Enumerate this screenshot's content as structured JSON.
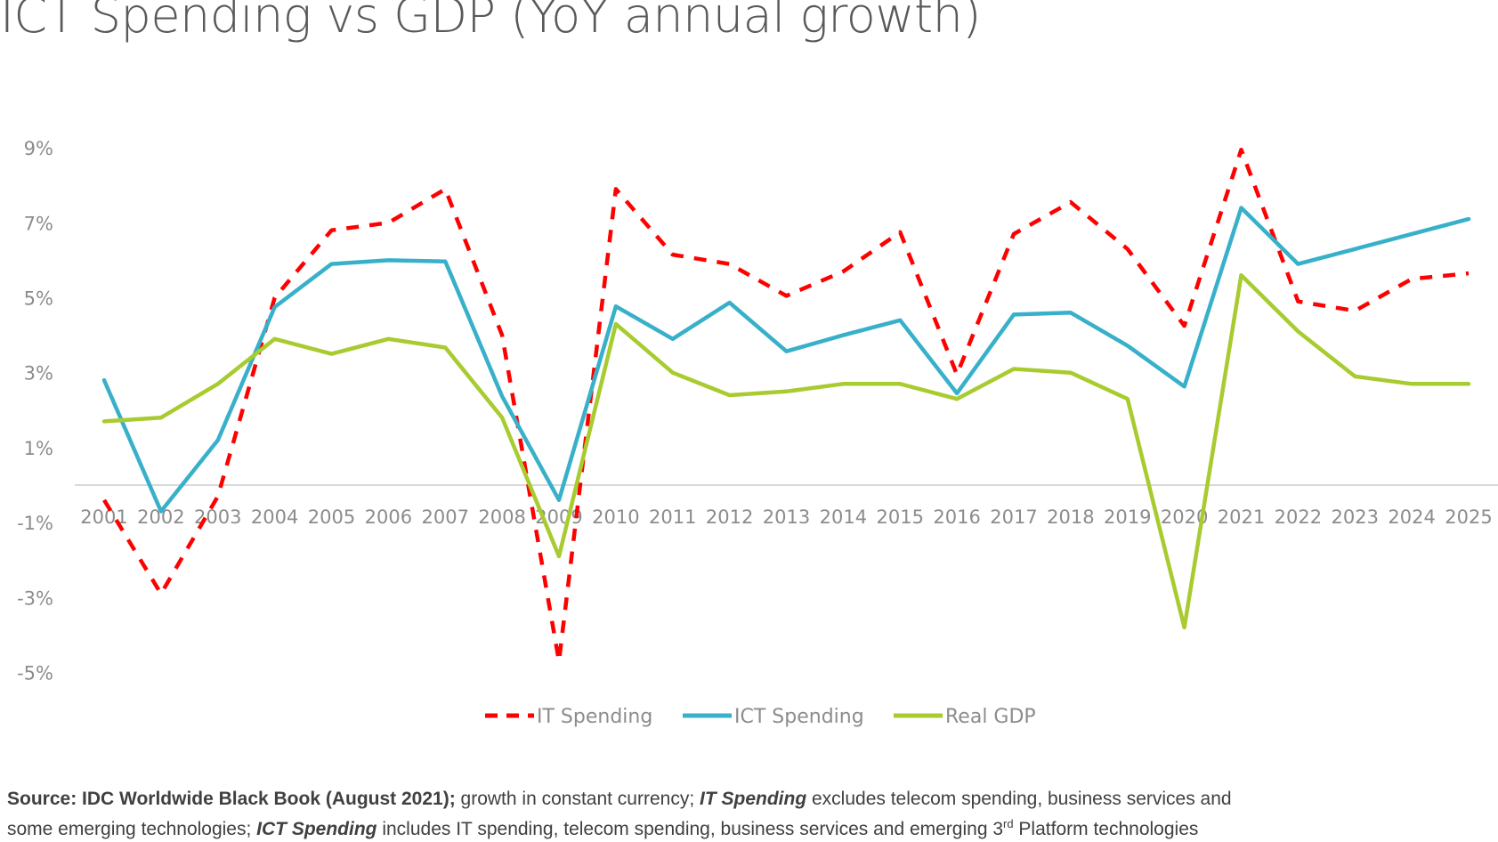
{
  "chart_data": {
    "type": "line",
    "title": "ICT Spending vs GDP (YoY annual growth)",
    "xlabel": "",
    "ylabel": "",
    "x": [
      "2001",
      "2002",
      "2003",
      "2004",
      "2005",
      "2006",
      "2007",
      "2008",
      "2009",
      "2010",
      "2011",
      "2012",
      "2013",
      "2014",
      "2015",
      "2016",
      "2017",
      "2018",
      "2019",
      "2020",
      "2021",
      "2022",
      "2023",
      "2024",
      "2025"
    ],
    "y_ticks": [
      "9%",
      "7%",
      "5%",
      "3%",
      "1%",
      "-1%",
      "-3%",
      "-5%"
    ],
    "y_tick_values": [
      9,
      7,
      5,
      3,
      1,
      -1,
      -3,
      -5
    ],
    "ylim": [
      -5,
      9
    ],
    "grid": false,
    "legend_position": "bottom",
    "series": [
      {
        "name": "IT Spending",
        "color": "#ff0000",
        "style": "dashed",
        "values": [
          -0.4,
          -2.9,
          -0.3,
          5.0,
          6.8,
          7.0,
          7.9,
          4.0,
          -4.7,
          7.9,
          6.15,
          5.9,
          5.05,
          5.7,
          6.75,
          2.95,
          6.7,
          7.55,
          6.3,
          4.25,
          8.95,
          4.9,
          4.65,
          5.5,
          5.65
        ]
      },
      {
        "name": "ICT Spending",
        "color": "#38b0c9",
        "style": "solid",
        "values": [
          2.8,
          -0.7,
          1.2,
          4.75,
          5.9,
          6.0,
          5.97,
          2.37,
          -0.4,
          4.77,
          3.9,
          4.87,
          3.57,
          4.0,
          4.4,
          2.45,
          4.55,
          4.6,
          3.72,
          2.63,
          7.4,
          5.9,
          6.3,
          6.7,
          7.1
        ]
      },
      {
        "name": "Real GDP",
        "color": "#a8cb2f",
        "style": "solid",
        "values": [
          1.7,
          1.8,
          2.7,
          3.9,
          3.5,
          3.9,
          3.67,
          1.8,
          -1.9,
          4.3,
          3.0,
          2.4,
          2.5,
          2.7,
          2.7,
          2.3,
          3.1,
          3.0,
          2.3,
          -3.8,
          5.6,
          4.1,
          2.9,
          2.7,
          2.7
        ]
      }
    ]
  },
  "source": {
    "bold": "Source: IDC Worldwide Black Book (August 2021);",
    "t1": " growth in constant currency; ",
    "it_label": "IT Spending",
    "t2": " excludes telecom spending, business services and",
    "t3": "some emerging technologies; ",
    "ict_label": "ICT Spending",
    "t4": " includes IT spending, telecom spending, business services and emerging 3",
    "sup": "rd",
    "t5": " Platform technologies"
  }
}
